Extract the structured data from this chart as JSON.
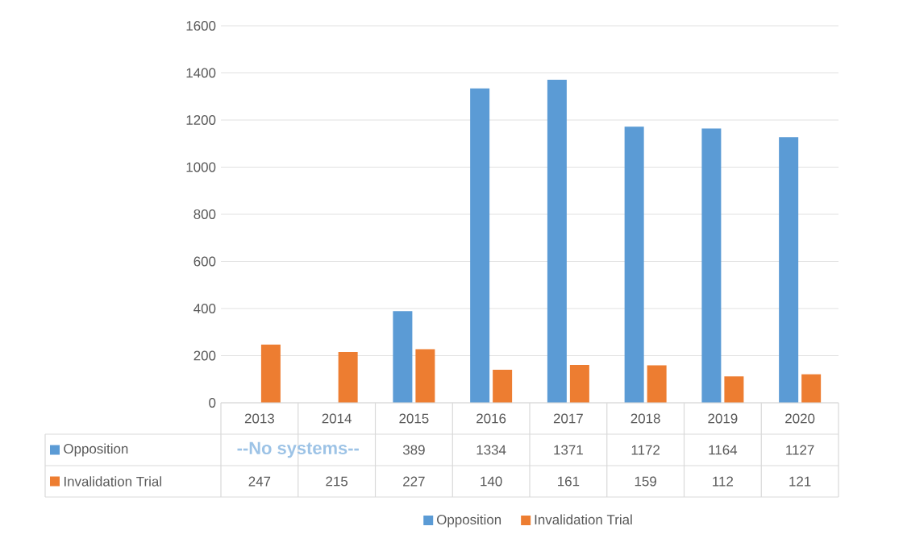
{
  "chart_data": {
    "type": "bar",
    "categories": [
      "2013",
      "2014",
      "2015",
      "2016",
      "2017",
      "2018",
      "2019",
      "2020"
    ],
    "series": [
      {
        "name": "Opposition",
        "color": "#5b9bd5",
        "values": [
          null,
          null,
          389,
          1334,
          1371,
          1172,
          1164,
          1127
        ]
      },
      {
        "name": "Invalidation Trial",
        "color": "#ed7d31",
        "values": [
          247,
          215,
          227,
          140,
          161,
          159,
          112,
          121
        ]
      }
    ],
    "ylim": [
      0,
      1600
    ],
    "yticks": [
      0,
      200,
      400,
      600,
      800,
      1000,
      1200,
      1400,
      1600
    ],
    "grid": "y",
    "legend": "bottom",
    "data_labels": true,
    "annotations": [
      "--No systems--"
    ]
  }
}
